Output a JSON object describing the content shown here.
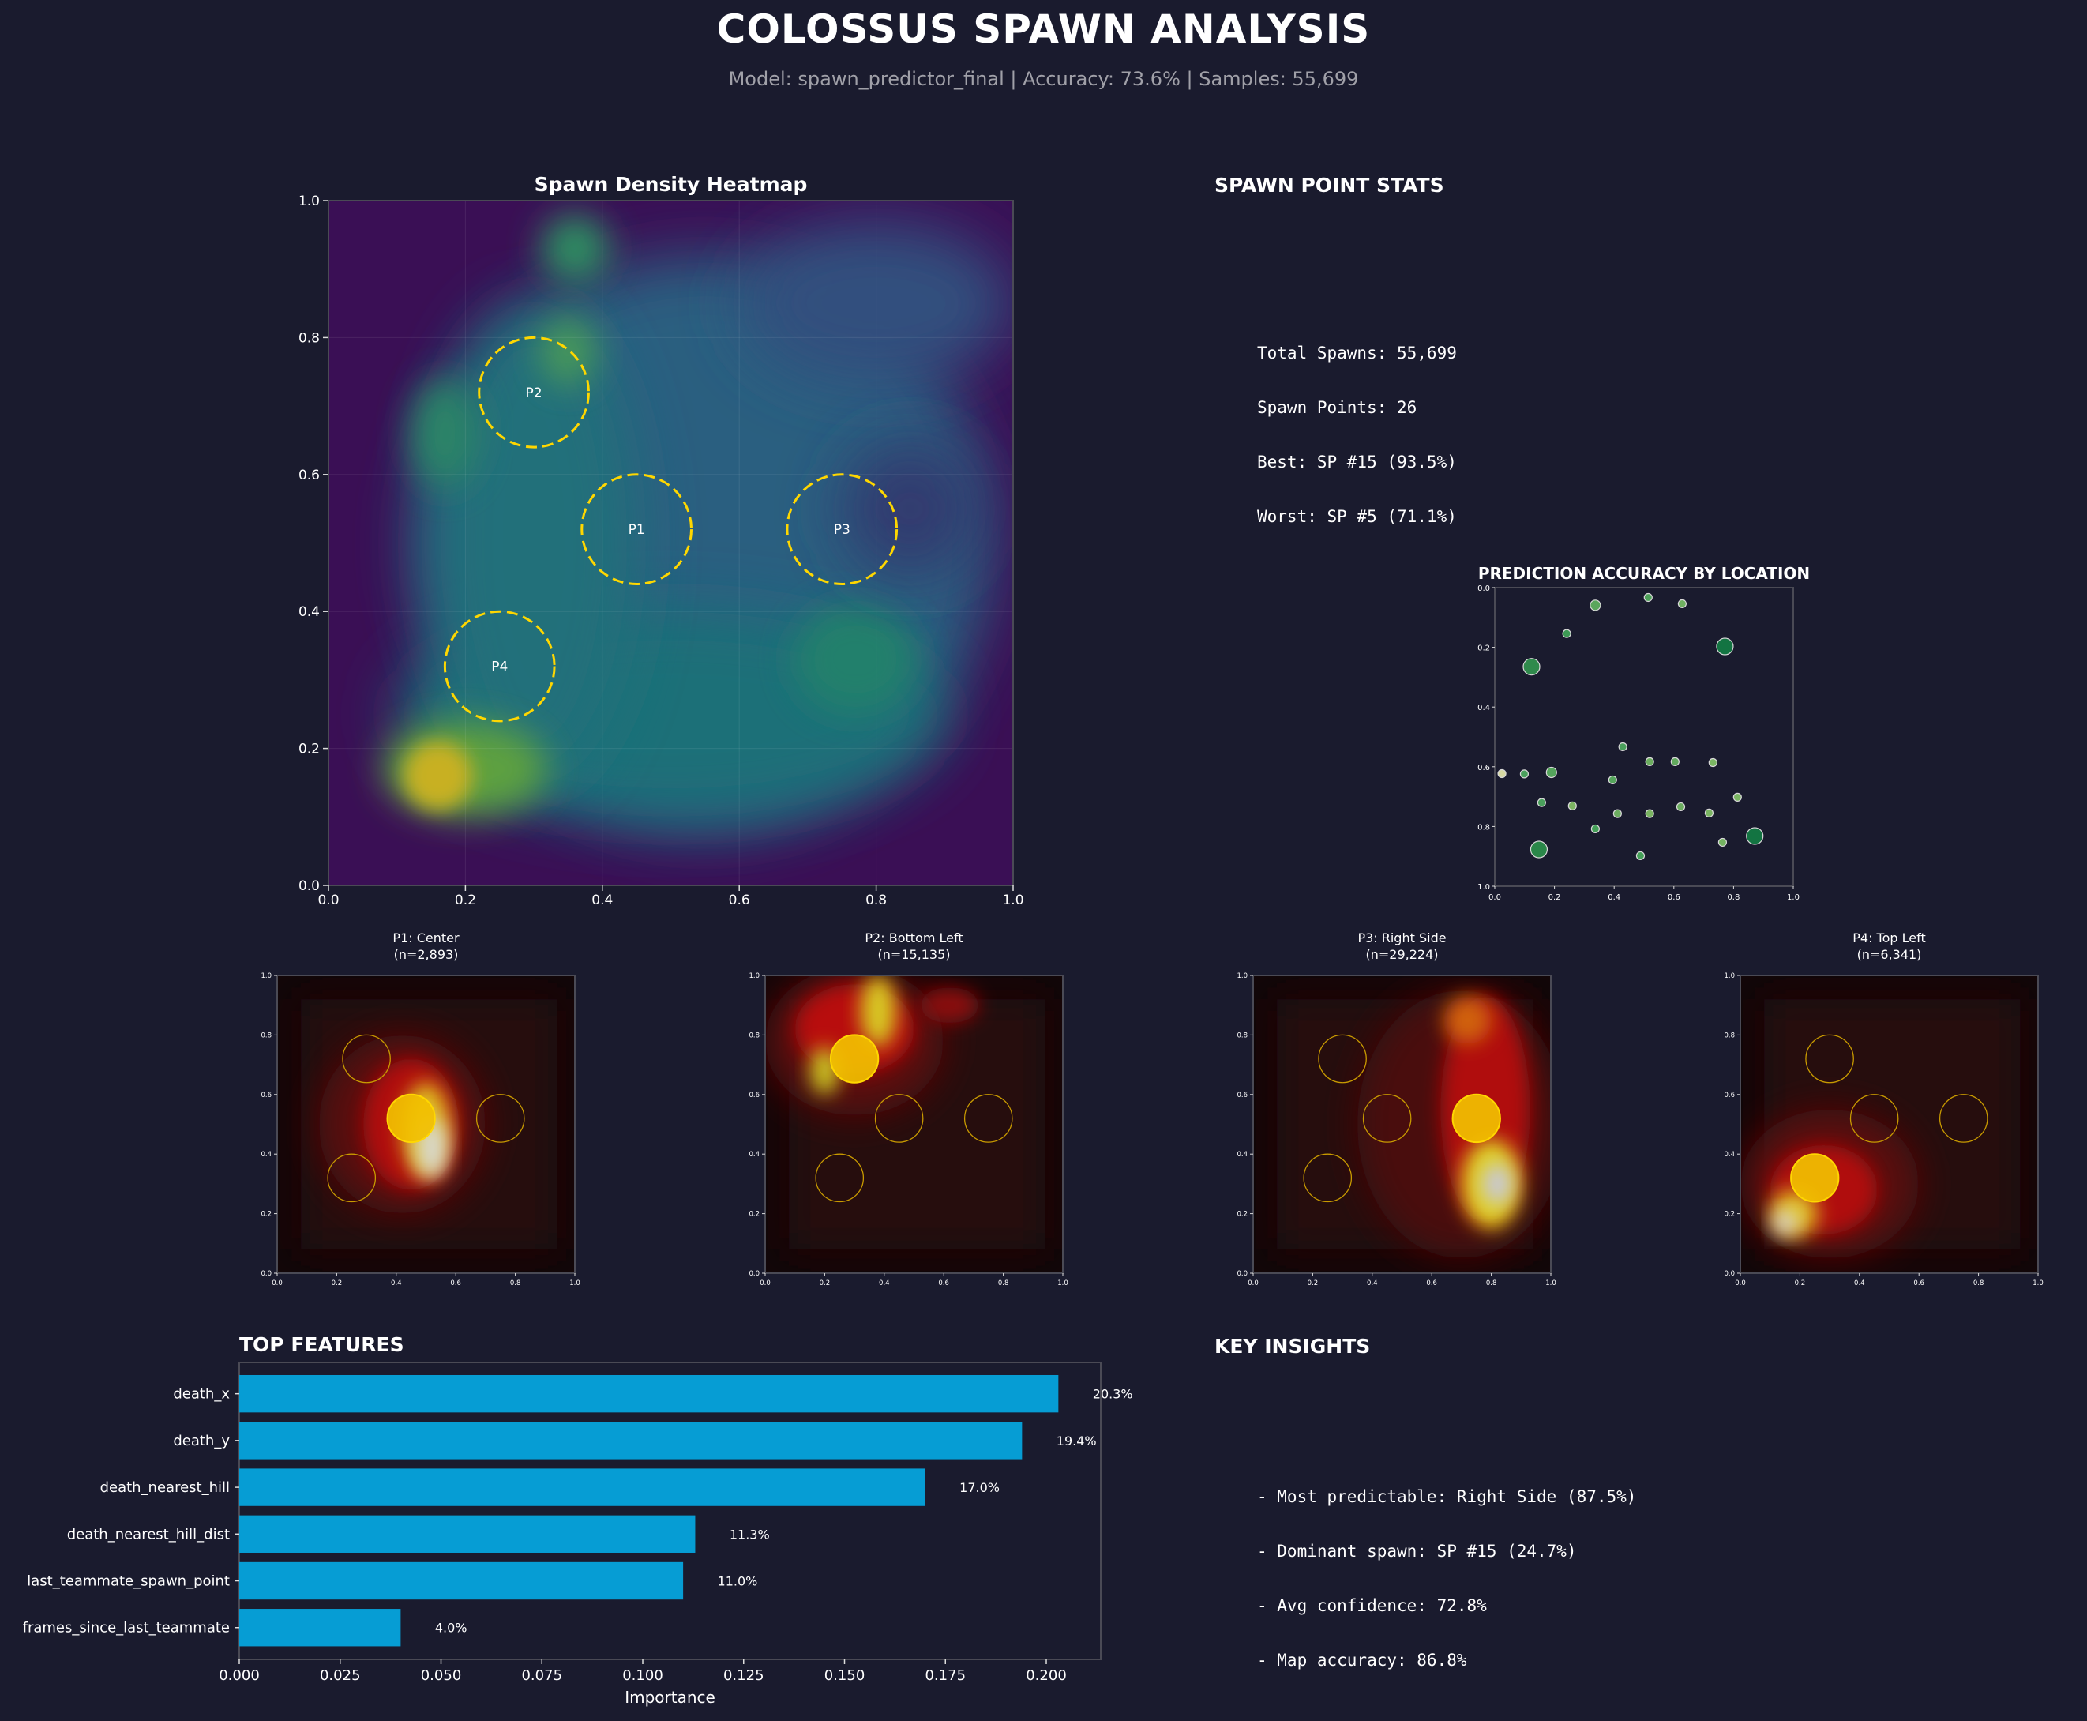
{
  "header": {
    "title": "COLOSSUS SPAWN ANALYSIS",
    "subtitle": "Model: spawn_predictor_final | Accuracy: 73.6% | Samples: 55,699"
  },
  "stats": {
    "title": "SPAWN POINT STATS",
    "lines": [
      "Total Spawns: 55,699",
      "Spawn Points: 26",
      "Best: SP #15 (93.5%)",
      "Worst: SP #5 (71.1%)"
    ]
  },
  "insights": {
    "title": "KEY INSIGHTS",
    "lines": [
      "- Most predictable: Right Side (87.5%)",
      "- Dominant spawn: SP #15 (24.7%)",
      "- Avg confidence: 72.8%",
      "- Map accuracy: 86.8%"
    ]
  },
  "chart_data": [
    {
      "type": "heatmap",
      "title": "Spawn Density Heatmap",
      "xlim": [
        0,
        1
      ],
      "ylim": [
        0,
        1
      ],
      "xticks": [
        "0.0",
        "0.2",
        "0.4",
        "0.6",
        "0.8",
        "1.0"
      ],
      "yticks": [
        "0.0",
        "0.2",
        "0.4",
        "0.6",
        "0.8",
        "1.0"
      ],
      "colormap": "viridis",
      "grid": true,
      "hills": [
        {
          "label": "P1",
          "x": 0.45,
          "y": 0.52
        },
        {
          "label": "P2",
          "x": 0.3,
          "y": 0.72
        },
        {
          "label": "P3",
          "x": 0.75,
          "y": 0.52
        },
        {
          "label": "P4",
          "x": 0.25,
          "y": 0.32
        }
      ],
      "hill_radius": 0.08,
      "hill_color": "#ffd700"
    },
    {
      "type": "scatter",
      "title": "PREDICTION ACCURACY BY LOCATION",
      "xlim": [
        0,
        1
      ],
      "ylim": [
        1,
        0
      ],
      "y_inverted": true,
      "xticks": [
        "0.0",
        "0.2",
        "0.4",
        "0.6",
        "0.8",
        "1.0"
      ],
      "yticks": [
        "0.0",
        "0.2",
        "0.4",
        "0.6",
        "0.8",
        "1.0"
      ],
      "colormap": "greens",
      "points": [
        {
          "x": 0.024,
          "y": 0.623,
          "size": "small",
          "color": "#d6d9a2"
        },
        {
          "x": 0.099,
          "y": 0.624,
          "size": "small",
          "color": "#4aa05c"
        },
        {
          "x": 0.19,
          "y": 0.619,
          "size": "medium",
          "color": "#55a55c"
        },
        {
          "x": 0.157,
          "y": 0.72,
          "size": "small",
          "color": "#4aa05c"
        },
        {
          "x": 0.26,
          "y": 0.731,
          "size": "small",
          "color": "#7db562"
        },
        {
          "x": 0.123,
          "y": 0.265,
          "size": "large",
          "color": "#2f8a4c"
        },
        {
          "x": 0.148,
          "y": 0.877,
          "size": "large",
          "color": "#2a8749"
        },
        {
          "x": 0.241,
          "y": 0.154,
          "size": "small",
          "color": "#3d9a55"
        },
        {
          "x": 0.337,
          "y": 0.059,
          "size": "medium",
          "color": "#5aa65c"
        },
        {
          "x": 0.514,
          "y": 0.033,
          "size": "small",
          "color": "#4ea25a"
        },
        {
          "x": 0.628,
          "y": 0.054,
          "size": "small",
          "color": "#6fb060"
        },
        {
          "x": 0.771,
          "y": 0.197,
          "size": "large",
          "color": "#137442"
        },
        {
          "x": 0.429,
          "y": 0.533,
          "size": "small",
          "color": "#4aa05c"
        },
        {
          "x": 0.519,
          "y": 0.583,
          "size": "small",
          "color": "#6cae60"
        },
        {
          "x": 0.604,
          "y": 0.583,
          "size": "small",
          "color": "#62aa5e"
        },
        {
          "x": 0.731,
          "y": 0.586,
          "size": "small",
          "color": "#7ab562"
        },
        {
          "x": 0.395,
          "y": 0.644,
          "size": "small",
          "color": "#55a55c"
        },
        {
          "x": 0.411,
          "y": 0.757,
          "size": "small",
          "color": "#6cae60"
        },
        {
          "x": 0.519,
          "y": 0.757,
          "size": "small",
          "color": "#7ab562"
        },
        {
          "x": 0.623,
          "y": 0.734,
          "size": "small",
          "color": "#6cae60"
        },
        {
          "x": 0.718,
          "y": 0.755,
          "size": "small",
          "color": "#7ab562"
        },
        {
          "x": 0.813,
          "y": 0.702,
          "size": "small",
          "color": "#7ab562"
        },
        {
          "x": 0.337,
          "y": 0.808,
          "size": "small",
          "color": "#44a058"
        },
        {
          "x": 0.488,
          "y": 0.898,
          "size": "small",
          "color": "#44a058"
        },
        {
          "x": 0.763,
          "y": 0.853,
          "size": "small",
          "color": "#74b361"
        },
        {
          "x": 0.871,
          "y": 0.832,
          "size": "large",
          "color": "#137442"
        }
      ]
    },
    {
      "type": "heatmap",
      "colormap": "hot",
      "panels": [
        {
          "title": "P1: Center",
          "n": "(n=2,893)",
          "highlight": "P1"
        },
        {
          "title": "P2: Bottom Left",
          "n": "(n=15,135)",
          "highlight": "P2"
        },
        {
          "title": "P3: Right Side",
          "n": "(n=29,224)",
          "highlight": "P3"
        },
        {
          "title": "P4: Top Left",
          "n": "(n=6,341)",
          "highlight": "P4"
        }
      ],
      "xticks": [
        "0.0",
        "0.2",
        "0.4",
        "0.6",
        "0.8",
        "1.0"
      ],
      "yticks": [
        "0.0",
        "0.2",
        "0.4",
        "0.6",
        "0.8",
        "1.0"
      ],
      "xlim": [
        0,
        1
      ],
      "ylim": [
        0,
        1
      ]
    },
    {
      "type": "bar",
      "orientation": "horizontal",
      "title": "TOP FEATURES",
      "xlabel": "Importance",
      "xlim": [
        0,
        0.2135
      ],
      "xticks": [
        "0.000",
        "0.025",
        "0.050",
        "0.075",
        "0.100",
        "0.125",
        "0.150",
        "0.175",
        "0.200"
      ],
      "categories": [
        "death_x",
        "death_y",
        "death_nearest_hill",
        "death_nearest_hill_dist",
        "last_teammate_spawn_point",
        "frames_since_last_teammate"
      ],
      "values": [
        0.203,
        0.194,
        0.17,
        0.113,
        0.11,
        0.04
      ],
      "labels": [
        "20.3%",
        "19.4%",
        "17.0%",
        "11.3%",
        "11.0%",
        "4.0%"
      ],
      "color": "#069dd4"
    }
  ]
}
